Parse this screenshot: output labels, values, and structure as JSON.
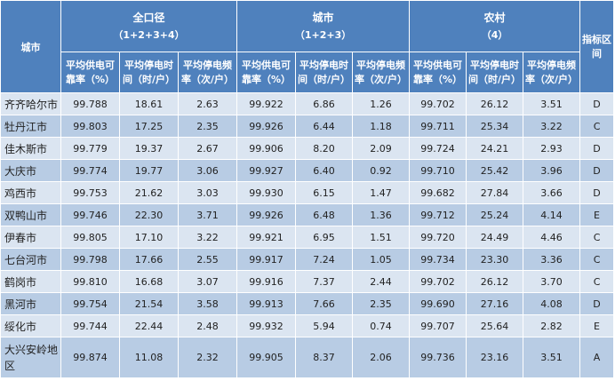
{
  "header": {
    "city_col": "城市",
    "groups": [
      {
        "title": "全口径",
        "formula": "（1+2+3+4）"
      },
      {
        "title": "城市",
        "formula": "（1+2+3）"
      },
      {
        "title": "农村",
        "formula": "（4）"
      }
    ],
    "metrics": [
      "平均供电可靠率（%）",
      "平均停电时间（时/户）",
      "平均停电频率（次/户）"
    ],
    "grade_col": "指标区间"
  },
  "rows": [
    {
      "city": "齐齐哈尔市",
      "values": [
        "99.788",
        "18.61",
        "2.63",
        "99.922",
        "6.86",
        "1.26",
        "99.702",
        "26.12",
        "3.51"
      ],
      "grade": "D"
    },
    {
      "city": "牡丹江市",
      "values": [
        "99.803",
        "17.25",
        "2.35",
        "99.926",
        "6.44",
        "1.18",
        "99.711",
        "25.34",
        "3.22"
      ],
      "grade": "C"
    },
    {
      "city": "佳木斯市",
      "values": [
        "99.779",
        "19.37",
        "2.67",
        "99.906",
        "8.20",
        "2.09",
        "99.724",
        "24.21",
        "2.93"
      ],
      "grade": "D"
    },
    {
      "city": "大庆市",
      "values": [
        "99.774",
        "19.77",
        "3.06",
        "99.927",
        "6.40",
        "0.92",
        "99.710",
        "25.42",
        "3.96"
      ],
      "grade": "D"
    },
    {
      "city": "鸡西市",
      "values": [
        "99.753",
        "21.62",
        "3.03",
        "99.930",
        "6.15",
        "1.47",
        "99.682",
        "27.84",
        "3.66"
      ],
      "grade": "D"
    },
    {
      "city": "双鸭山市",
      "values": [
        "99.746",
        "22.30",
        "3.71",
        "99.926",
        "6.48",
        "1.36",
        "99.712",
        "25.24",
        "4.14"
      ],
      "grade": "E"
    },
    {
      "city": "伊春市",
      "values": [
        "99.805",
        "17.10",
        "3.22",
        "99.921",
        "6.95",
        "1.51",
        "99.720",
        "24.49",
        "4.46"
      ],
      "grade": "C"
    },
    {
      "city": "七台河市",
      "values": [
        "99.798",
        "17.66",
        "2.55",
        "99.917",
        "7.24",
        "1.05",
        "99.734",
        "23.30",
        "3.36"
      ],
      "grade": "C"
    },
    {
      "city": "鹤岗市",
      "values": [
        "99.810",
        "16.68",
        "3.07",
        "99.916",
        "7.37",
        "2.44",
        "99.702",
        "26.12",
        "3.70"
      ],
      "grade": "C"
    },
    {
      "city": "黑河市",
      "values": [
        "99.754",
        "21.54",
        "3.58",
        "99.913",
        "7.66",
        "2.35",
        "99.690",
        "27.16",
        "4.08"
      ],
      "grade": "D"
    },
    {
      "city": "绥化市",
      "values": [
        "99.744",
        "22.44",
        "2.48",
        "99.932",
        "5.94",
        "0.74",
        "99.707",
        "25.64",
        "2.82"
      ],
      "grade": "E"
    },
    {
      "city": "大兴安岭地区",
      "values": [
        "99.874",
        "11.08",
        "2.32",
        "99.905",
        "8.37",
        "2.06",
        "99.736",
        "23.16",
        "3.51"
      ],
      "grade": "A"
    }
  ],
  "colors": {
    "header_bg": "#4f81bd",
    "row_light": "#dbe5f1",
    "row_dark": "#b8cce4"
  }
}
